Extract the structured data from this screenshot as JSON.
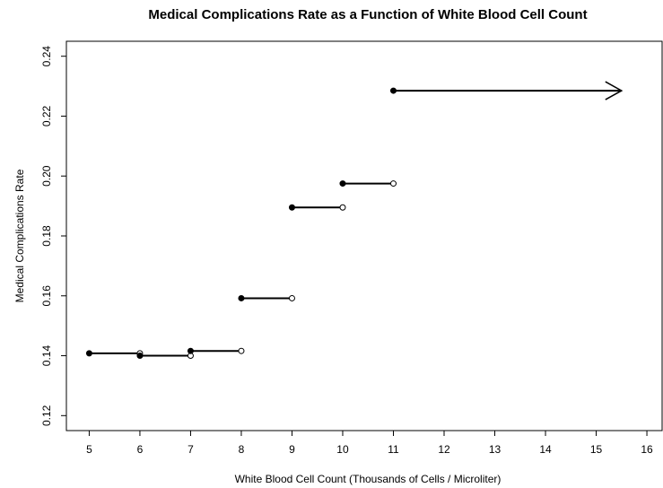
{
  "chart_data": {
    "type": "step",
    "title": "Medical Complications Rate as a Function of White Blood Cell Count",
    "xlabel": "White Blood Cell Count (Thousands of Cells / Microliter)",
    "ylabel": "Medical Complications Rate",
    "xlim": [
      4.55,
      16.3
    ],
    "ylim": [
      0.115,
      0.245
    ],
    "x_ticks": [
      "5",
      "6",
      "7",
      "8",
      "9",
      "10",
      "11",
      "12",
      "13",
      "14",
      "15",
      "16"
    ],
    "y_ticks": [
      "0.12",
      "0.14",
      "0.16",
      "0.18",
      "0.20",
      "0.22",
      "0.24"
    ],
    "grid": false,
    "legend": "none",
    "segments": [
      {
        "x_start": 5,
        "x_end": 6,
        "y": 0.1408,
        "closed_start": true,
        "open_end": true
      },
      {
        "x_start": 6,
        "x_end": 7,
        "y": 0.14,
        "closed_start": true,
        "open_end": true
      },
      {
        "x_start": 7,
        "x_end": 8,
        "y": 0.1416,
        "closed_start": true,
        "open_end": true
      },
      {
        "x_start": 8,
        "x_end": 9,
        "y": 0.1592,
        "closed_start": true,
        "open_end": true
      },
      {
        "x_start": 9,
        "x_end": 10,
        "y": 0.1895,
        "closed_start": true,
        "open_end": true
      },
      {
        "x_start": 10,
        "x_end": 11,
        "y": 0.1975,
        "closed_start": true,
        "open_end": true
      },
      {
        "x_start": 11,
        "x_end": 15.5,
        "y": 0.2285,
        "closed_start": true,
        "open_end": false,
        "arrow": true
      }
    ],
    "colors": {
      "line": "#000000",
      "background": "#ffffff"
    }
  }
}
